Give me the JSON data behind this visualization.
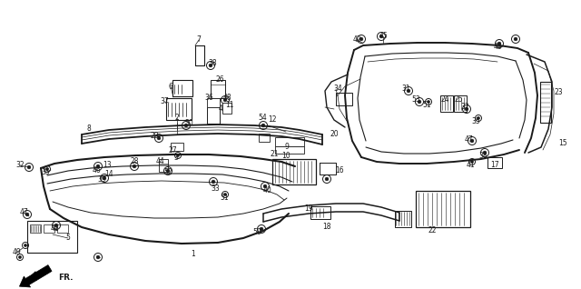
{
  "bg_color": "#ffffff",
  "line_color": "#1a1a1a",
  "fig_width": 6.4,
  "fig_height": 3.18,
  "dpi": 100,
  "fr_label": "FR."
}
